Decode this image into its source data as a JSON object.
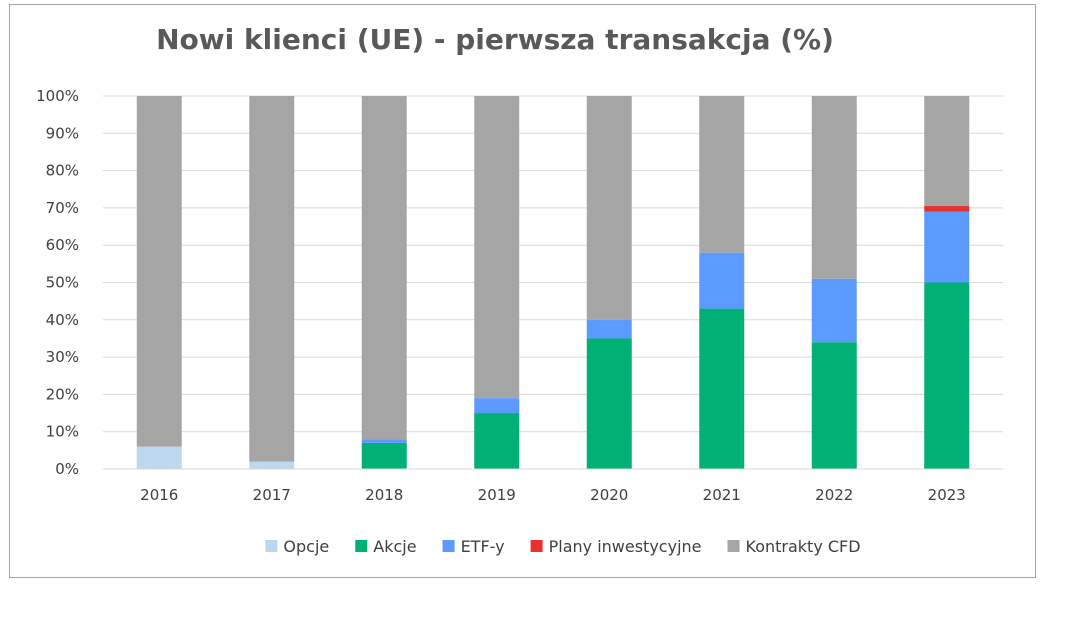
{
  "chart_data": {
    "type": "bar",
    "stacked": true,
    "title": "Nowi klienci (UE) - pierwsza transakcja (%)",
    "xlabel": "",
    "ylabel": "",
    "categories": [
      "2016",
      "2017",
      "2018",
      "2019",
      "2020",
      "2021",
      "2022",
      "2023"
    ],
    "ylim": [
      0,
      100
    ],
    "yticks": [
      "0%",
      "10%",
      "20%",
      "30%",
      "40%",
      "50%",
      "60%",
      "70%",
      "80%",
      "90%",
      "100%"
    ],
    "grid": true,
    "legend_position": "bottom",
    "series": [
      {
        "name": "Opcje",
        "color": "#bdd7ee",
        "values": [
          6,
          2,
          0,
          0,
          0,
          0,
          0,
          0
        ]
      },
      {
        "name": "Akcje",
        "color": "#00b074",
        "values": [
          0,
          0,
          7,
          15,
          35,
          43,
          34,
          50
        ]
      },
      {
        "name": "ETF-y",
        "color": "#5b9bff",
        "values": [
          0,
          0,
          1,
          4,
          5,
          15,
          17,
          19
        ]
      },
      {
        "name": "Plany inwestycyjne",
        "color": "#e8302e",
        "values": [
          0,
          0,
          0,
          0,
          0,
          0,
          0,
          1.5
        ]
      },
      {
        "name": "Kontrakty CFD",
        "color": "#a5a5a5",
        "values": [
          94,
          98,
          92,
          81,
          60,
          42,
          49,
          29.5
        ]
      }
    ]
  }
}
